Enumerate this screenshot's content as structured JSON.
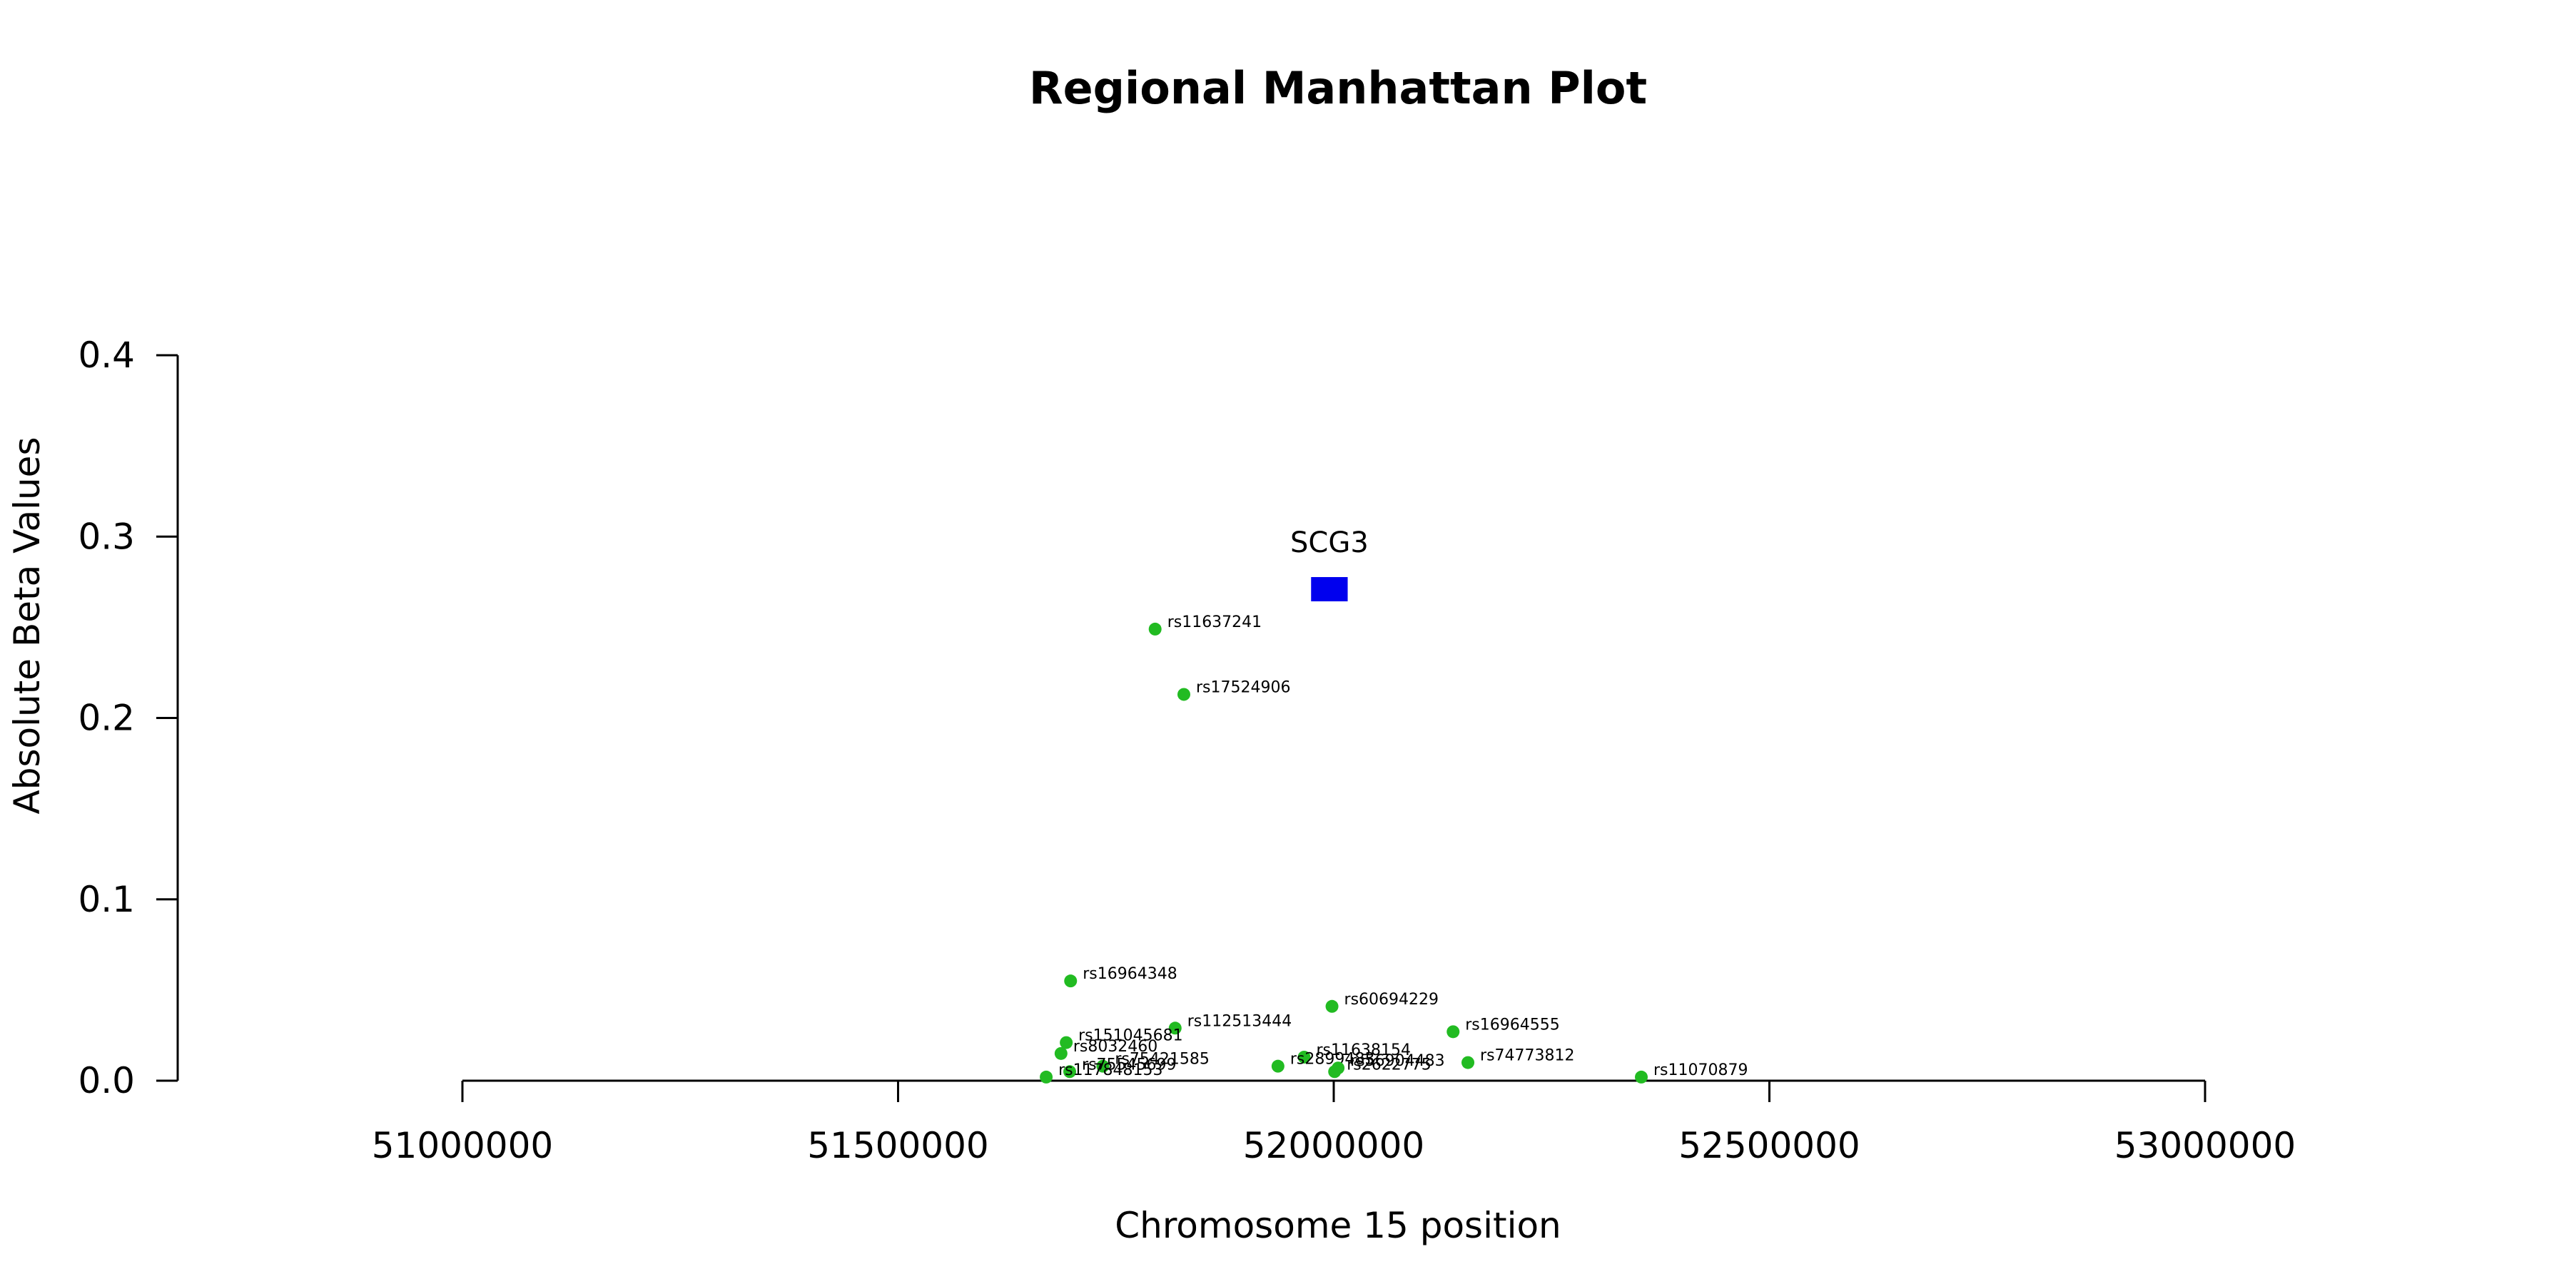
{
  "chart_data": {
    "type": "scatter",
    "title": "Regional Manhattan Plot",
    "xlabel": "Chromosome 15 position",
    "ylabel": "Absolute Beta Values",
    "xlim": [
      51000000,
      53000000
    ],
    "ylim": [
      0,
      0.4
    ],
    "x_ticks": [
      51000000,
      51500000,
      52000000,
      52500000,
      53000000
    ],
    "x_tick_labels": [
      "51000000",
      "51500000",
      "52000000",
      "52500000",
      "53000000"
    ],
    "y_ticks": [
      0.0,
      0.1,
      0.2,
      0.3,
      0.4
    ],
    "y_tick_labels": [
      "0.0",
      "0.1",
      "0.2",
      "0.3",
      "0.4"
    ],
    "grid": false,
    "point_color": "#22bb22",
    "gene_color": "#0000ee",
    "gene": {
      "name": "SCG3",
      "x_start": 51974000,
      "x_end": 52016000,
      "y": 0.271
    },
    "points": [
      {
        "label": "rs11637241",
        "x": 51795000,
        "y": 0.249
      },
      {
        "label": "rs17524906",
        "x": 51828000,
        "y": 0.213
      },
      {
        "label": "rs16964348",
        "x": 51698000,
        "y": 0.055
      },
      {
        "label": "rs60694229",
        "x": 51998000,
        "y": 0.041
      },
      {
        "label": "rs112513444",
        "x": 51818000,
        "y": 0.029
      },
      {
        "label": "rs16964555",
        "x": 52137000,
        "y": 0.027
      },
      {
        "label": "rs151045681",
        "x": 51693000,
        "y": 0.021
      },
      {
        "label": "rs8032460",
        "x": 51687000,
        "y": 0.015
      },
      {
        "label": "rs11638154",
        "x": 51966000,
        "y": 0.013
      },
      {
        "label": "rs74773812",
        "x": 52154000,
        "y": 0.01
      },
      {
        "label": "rs2899483",
        "x": 51936000,
        "y": 0.008
      },
      {
        "label": "rs75421585",
        "x": 51735000,
        "y": 0.008
      },
      {
        "label": "rs56904483",
        "x": 52005000,
        "y": 0.007
      },
      {
        "label": "rs2622775",
        "x": 52001000,
        "y": 0.005
      },
      {
        "label": "rs75545699",
        "x": 51697000,
        "y": 0.005
      },
      {
        "label": "rs11070879",
        "x": 52353000,
        "y": 0.002
      },
      {
        "label": "rs117848153",
        "x": 51670000,
        "y": 0.002
      }
    ]
  }
}
